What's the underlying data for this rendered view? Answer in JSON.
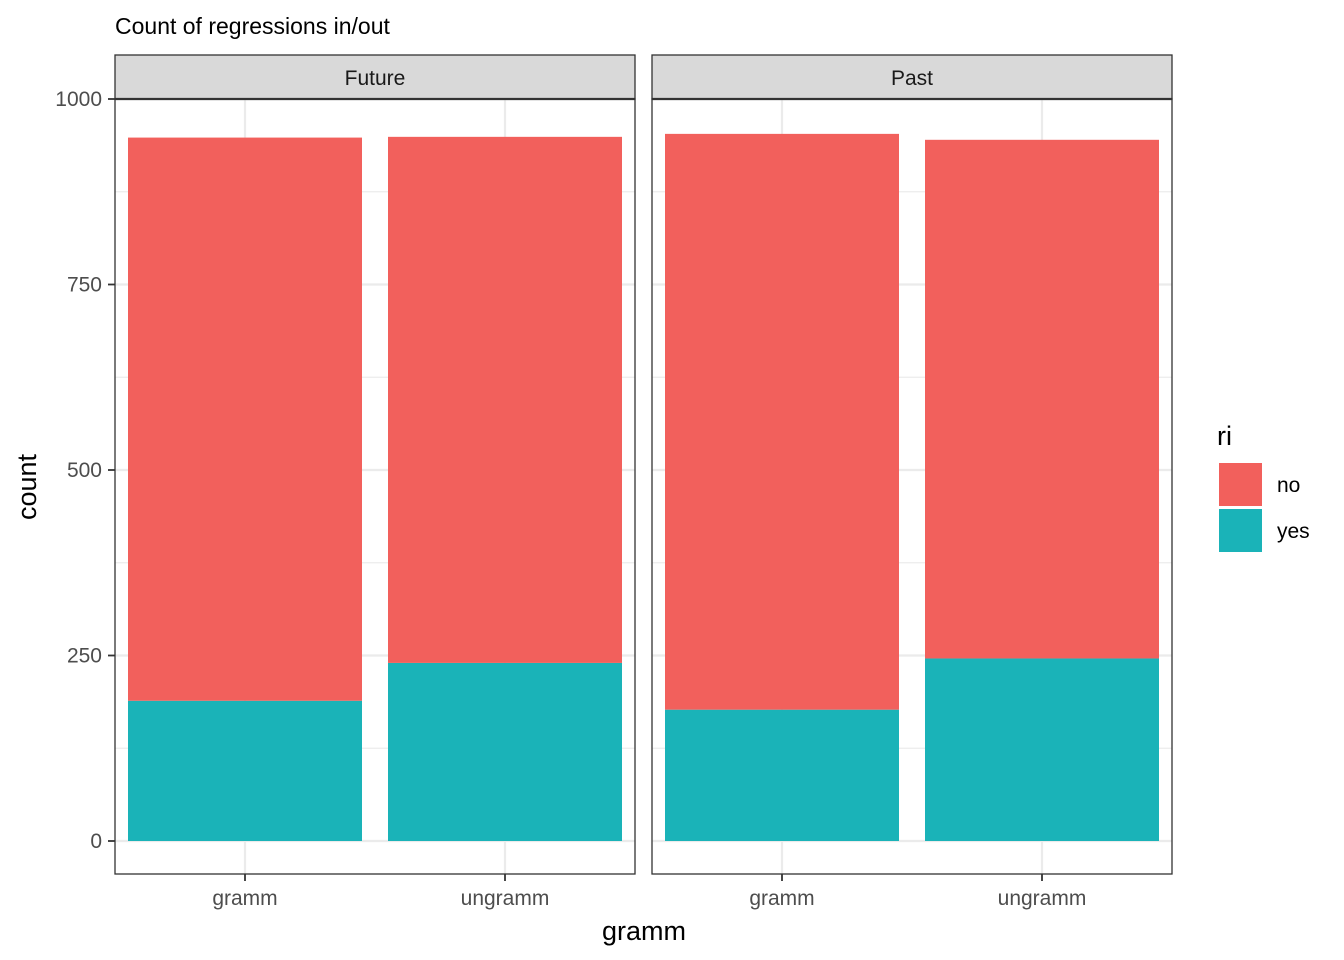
{
  "chart_data": {
    "type": "bar",
    "stacked": true,
    "title": "Count of regressions in/out",
    "xlabel": "gramm",
    "ylabel": "count",
    "ylim": [
      -45,
      1000
    ],
    "y_ticks": [
      0,
      250,
      500,
      750,
      1000
    ],
    "grid": true,
    "categories": [
      "gramm",
      "ungramm"
    ],
    "panels": [
      {
        "label": "Future",
        "series": [
          {
            "name": "no",
            "values": [
              759,
              709
            ]
          },
          {
            "name": "yes",
            "values": [
              189,
              240
            ]
          }
        ]
      },
      {
        "label": "Past",
        "series": [
          {
            "name": "no",
            "values": [
              776,
              699
            ]
          },
          {
            "name": "yes",
            "values": [
              177,
              246
            ]
          }
        ]
      }
    ],
    "legend": {
      "title": "ri",
      "position": "right",
      "entries": [
        {
          "name": "no",
          "color": "#F2605C"
        },
        {
          "name": "yes",
          "color": "#1AB3B8"
        }
      ]
    }
  }
}
